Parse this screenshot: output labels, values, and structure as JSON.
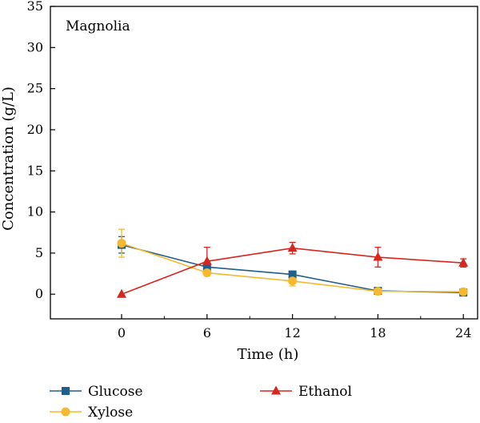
{
  "chart_data": {
    "type": "line",
    "annotation": "Magnolia",
    "xlabel": "Time (h)",
    "ylabel": "Concentration (g/L)",
    "xlim": [
      -5,
      25
    ],
    "ylim": [
      -3,
      35
    ],
    "x_ticks": [
      0,
      6,
      12,
      18,
      24
    ],
    "x_minor_ticks": [
      3,
      9,
      15,
      21
    ],
    "y_ticks": [
      0,
      5,
      10,
      15,
      20,
      25,
      30,
      35
    ],
    "x": [
      0,
      6,
      12,
      18,
      24
    ],
    "series": [
      {
        "name": "Glucose",
        "color": "#1f5f8b",
        "marker": "square",
        "values": [
          6.0,
          3.3,
          2.4,
          0.4,
          0.2
        ],
        "errors": [
          1.0,
          0.6,
          0.3,
          0.2,
          0.15
        ]
      },
      {
        "name": "Xylose",
        "color": "#f5b82e",
        "marker": "circle",
        "values": [
          6.2,
          2.6,
          1.6,
          0.35,
          0.3
        ],
        "errors": [
          1.7,
          0.4,
          0.6,
          0.2,
          0.2
        ]
      },
      {
        "name": "Ethanol",
        "color": "#d7261e",
        "marker": "triangle",
        "values": [
          0.0,
          4.0,
          5.6,
          4.5,
          3.8
        ],
        "errors": [
          0.0,
          1.7,
          0.7,
          1.2,
          0.5
        ]
      }
    ],
    "legend_position": "bottom",
    "grid": false
  }
}
